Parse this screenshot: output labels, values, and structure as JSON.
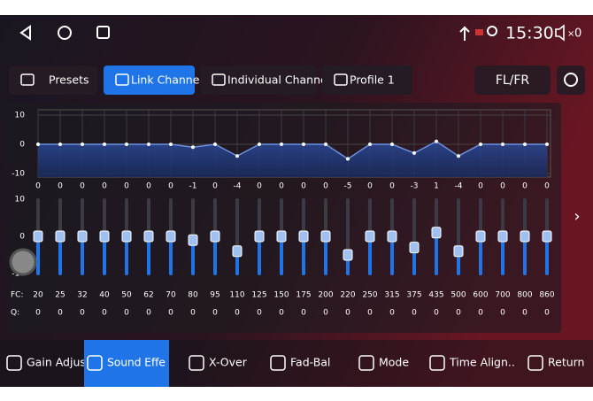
{
  "status": {
    "time": "15:30",
    "volume": "0"
  },
  "tabs": [
    "Presets",
    "Link Channel",
    "Individual Channel",
    "Profile 1"
  ],
  "selected_tab": 1,
  "channel": "FL/FR",
  "eq": {
    "ylim": [
      -10,
      10
    ],
    "yticks": [
      10,
      0,
      -10
    ],
    "fc_label": "FC:",
    "q_label": "Q:",
    "gains": [
      0,
      0,
      0,
      0,
      0,
      0,
      0,
      -1,
      0,
      -4,
      0,
      0,
      0,
      0,
      -5,
      0,
      0,
      -3,
      1,
      -4,
      0,
      0,
      0,
      0
    ],
    "fc": [
      20,
      25,
      32,
      40,
      50,
      62,
      70,
      80,
      95,
      110,
      125,
      150,
      175,
      200,
      220,
      250,
      315,
      375,
      435,
      500,
      600,
      700,
      800,
      860
    ],
    "q": [
      0,
      0,
      0,
      0,
      0,
      0,
      0,
      0,
      0,
      0,
      0,
      0,
      0,
      0,
      0,
      0,
      0,
      0,
      0,
      0,
      0,
      0,
      0,
      0
    ]
  },
  "bottom_nav": [
    "Gain Adjus..",
    "Sound Effe",
    "X-Over",
    "Fad-Bal",
    "Mode",
    "Time Align..",
    "Return"
  ],
  "selected_nav": 1
}
